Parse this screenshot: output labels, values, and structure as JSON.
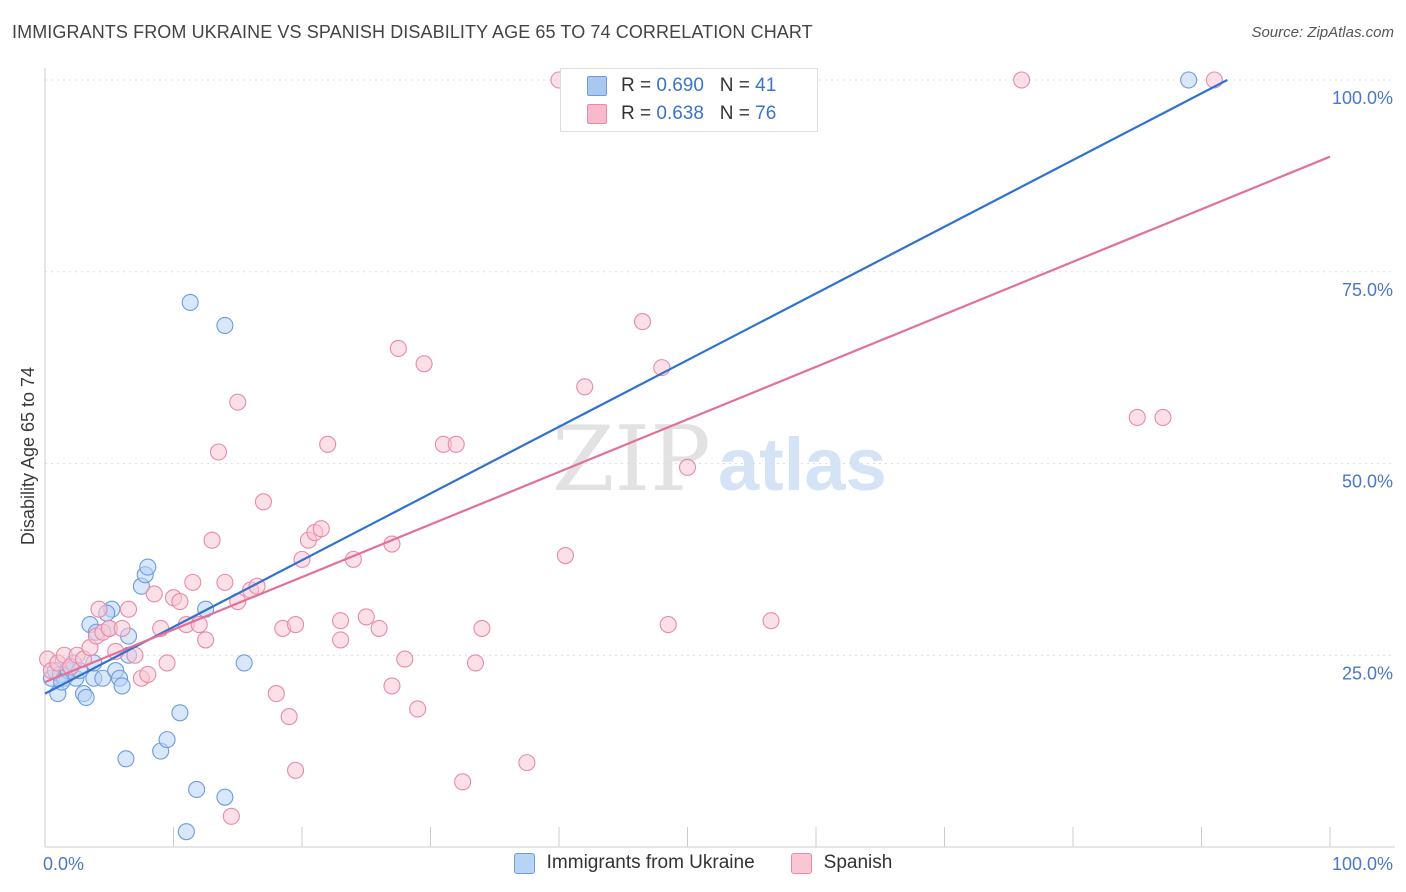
{
  "title": "IMMIGRANTS FROM UKRAINE VS SPANISH DISABILITY AGE 65 TO 74 CORRELATION CHART",
  "source": "Source: ZipAtlas.com",
  "watermark_zip": "ZIP",
  "watermark_atlas": "atlas",
  "legend": {
    "r_label": "R =",
    "n_label": "N =",
    "rows": [
      {
        "r": "0.690",
        "n": "41",
        "color": "#a8c8f0",
        "border": "#6d9be0"
      },
      {
        "r": "0.638",
        "n": "76",
        "color": "#f7b9cc",
        "border": "#e88aa6"
      }
    ]
  },
  "bottom_legend": [
    {
      "label": "Immigrants from Ukraine",
      "color": "#b8d4f4",
      "border": "#6d9be0"
    },
    {
      "label": "Spanish",
      "color": "#f9c6d4",
      "border": "#e88aa6"
    }
  ],
  "chart_data": {
    "type": "scatter",
    "title": "IMMIGRANTS FROM UKRAINE VS SPANISH DISABILITY AGE 65 TO 74 CORRELATION CHART",
    "ylabel": "Disability Age 65 to 74",
    "xlabel": "",
    "x_tick_labels": [
      "0.0%",
      "100.0%"
    ],
    "y_tick_labels": [
      "25.0%",
      "50.0%",
      "75.0%",
      "100.0%"
    ],
    "xlim": [
      0,
      100
    ],
    "ylim": [
      0,
      101
    ],
    "grid": true,
    "series": [
      {
        "name": "Immigrants from Ukraine",
        "color": "#6d9be0",
        "fill": "#b8d4f4",
        "trend": {
          "x": [
            0,
            92
          ],
          "y": [
            20,
            100
          ],
          "color": "#2f72d0"
        },
        "points": [
          [
            0.5,
            22
          ],
          [
            0.8,
            23
          ],
          [
            1,
            20
          ],
          [
            1.2,
            22.5
          ],
          [
            1.5,
            22
          ],
          [
            1.8,
            23
          ],
          [
            2,
            23.5
          ],
          [
            2.2,
            24
          ],
          [
            2.4,
            22
          ],
          [
            3,
            20
          ],
          [
            3.2,
            19.5
          ],
          [
            3.5,
            29
          ],
          [
            3.8,
            22
          ],
          [
            4,
            28
          ],
          [
            4.5,
            22
          ],
          [
            5,
            28.5
          ],
          [
            5.2,
            31
          ],
          [
            5.5,
            23
          ],
          [
            5.8,
            22
          ],
          [
            6,
            21
          ],
          [
            6.5,
            25
          ],
          [
            6.5,
            27.5
          ],
          [
            7.5,
            34
          ],
          [
            7.8,
            35.5
          ],
          [
            8,
            36.5
          ],
          [
            9,
            12.5
          ],
          [
            9.5,
            14
          ],
          [
            10.5,
            17.5
          ],
          [
            11,
            2
          ],
          [
            11.3,
            71
          ],
          [
            11.8,
            7.5
          ],
          [
            12.5,
            31
          ],
          [
            14,
            68
          ],
          [
            14,
            6.5
          ],
          [
            15.5,
            24
          ],
          [
            6.3,
            11.5
          ],
          [
            4.8,
            30.5
          ],
          [
            1.3,
            21.5
          ],
          [
            2.7,
            23
          ],
          [
            3.8,
            24
          ],
          [
            89,
            100
          ]
        ]
      },
      {
        "name": "Spanish",
        "color": "#e88aa6",
        "fill": "#f9c6d4",
        "trend": {
          "x": [
            0,
            100
          ],
          "y": [
            21.5,
            90
          ],
          "color": "#e3709a"
        },
        "points": [
          [
            0.2,
            24.5
          ],
          [
            0.5,
            23
          ],
          [
            1,
            24
          ],
          [
            1.5,
            25
          ],
          [
            2,
            23.5
          ],
          [
            2.5,
            25
          ],
          [
            3,
            24.5
          ],
          [
            3.5,
            26
          ],
          [
            4,
            27.5
          ],
          [
            4.2,
            31
          ],
          [
            4.5,
            28
          ],
          [
            5,
            28.5
          ],
          [
            5.5,
            25.5
          ],
          [
            6,
            28.5
          ],
          [
            6.5,
            31
          ],
          [
            7,
            25
          ],
          [
            7.5,
            22
          ],
          [
            8,
            22.5
          ],
          [
            8.5,
            33
          ],
          [
            9,
            28.5
          ],
          [
            9.5,
            24
          ],
          [
            10,
            32.5
          ],
          [
            10.5,
            32
          ],
          [
            11,
            29
          ],
          [
            11.5,
            34.5
          ],
          [
            12,
            29
          ],
          [
            12.5,
            27
          ],
          [
            13,
            40
          ],
          [
            13.5,
            51.5
          ],
          [
            14,
            34.5
          ],
          [
            15,
            58
          ],
          [
            15,
            32
          ],
          [
            16,
            33.5
          ],
          [
            16.5,
            34
          ],
          [
            17,
            45
          ],
          [
            18,
            20
          ],
          [
            18.5,
            28.5
          ],
          [
            19,
            17
          ],
          [
            19.5,
            29
          ],
          [
            19.5,
            10
          ],
          [
            20,
            37.5
          ],
          [
            20.5,
            40
          ],
          [
            21,
            41
          ],
          [
            21.5,
            41.5
          ],
          [
            22,
            52.5
          ],
          [
            23,
            27
          ],
          [
            23,
            29.5
          ],
          [
            24,
            37.5
          ],
          [
            25,
            30
          ],
          [
            26,
            28.5
          ],
          [
            27,
            39.5
          ],
          [
            27,
            21
          ],
          [
            27.5,
            65
          ],
          [
            28,
            24.5
          ],
          [
            29,
            18
          ],
          [
            29.5,
            63
          ],
          [
            31,
            52.5
          ],
          [
            32,
            52.5
          ],
          [
            32.5,
            8.5
          ],
          [
            33.5,
            24
          ],
          [
            34,
            28.5
          ],
          [
            37.5,
            11
          ],
          [
            40,
            100
          ],
          [
            40.5,
            38
          ],
          [
            42,
            60
          ],
          [
            46.5,
            68.5
          ],
          [
            48,
            62.5
          ],
          [
            48.5,
            29
          ],
          [
            50,
            49.5
          ],
          [
            53,
            100
          ],
          [
            56.5,
            29.5
          ],
          [
            76,
            100
          ],
          [
            85,
            56
          ],
          [
            87,
            56
          ],
          [
            91,
            100
          ],
          [
            14.5,
            4
          ]
        ]
      }
    ]
  }
}
